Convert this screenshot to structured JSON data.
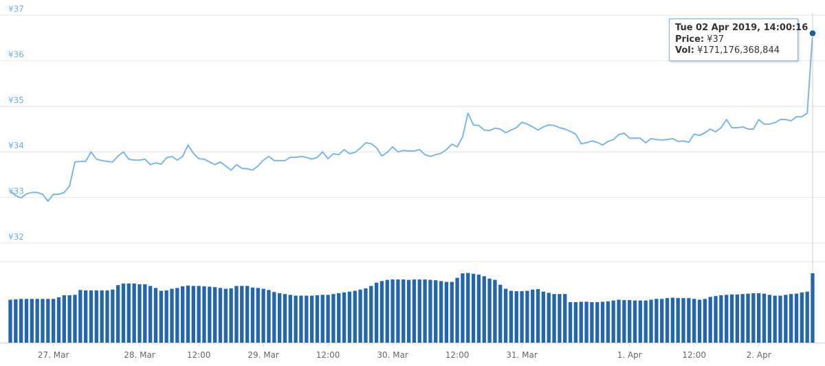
{
  "chart_data": {
    "type": "line",
    "categories": [
      null,
      null,
      null,
      null,
      null,
      null,
      null,
      null,
      "27. Mar",
      null,
      null,
      null,
      null,
      null,
      null,
      null,
      null,
      null,
      null,
      null,
      null,
      null,
      null,
      null,
      "28. Mar",
      null,
      null,
      null,
      null,
      null,
      null,
      null,
      null,
      null,
      null,
      "12:00",
      null,
      null,
      null,
      null,
      null,
      null,
      null,
      null,
      null,
      null,
      null,
      "29. Mar",
      null,
      null,
      null,
      null,
      null,
      null,
      null,
      null,
      null,
      null,
      null,
      "12:00",
      null,
      null,
      null,
      null,
      null,
      null,
      null,
      null,
      null,
      null,
      null,
      "30. Mar",
      null,
      null,
      null,
      null,
      null,
      null,
      null,
      null,
      null,
      null,
      null,
      "12:00",
      null,
      null,
      null,
      null,
      null,
      null,
      null,
      null,
      null,
      null,
      null,
      "31. Mar",
      null,
      null,
      null,
      null,
      null,
      null,
      null,
      null,
      null,
      null,
      null,
      null,
      null,
      null,
      null,
      null,
      null,
      null,
      null,
      "1. Apr",
      null,
      null,
      null,
      null,
      null,
      null,
      null,
      null,
      null,
      null,
      null,
      "12:00",
      null,
      null,
      null,
      null,
      null,
      null,
      null,
      null,
      null,
      null,
      null,
      "2. Apr",
      null,
      null,
      null,
      null,
      null,
      null,
      null,
      null,
      null,
      null
    ],
    "series": [
      {
        "type": "line",
        "color": "#7cb5ec",
        "values": [
          33.14,
          33.04,
          32.99,
          33.08,
          33.11,
          33.11,
          33.07,
          32.92,
          33.07,
          33.07,
          33.11,
          33.25,
          33.78,
          33.79,
          33.79,
          34.0,
          33.84,
          33.81,
          33.79,
          33.78,
          33.91,
          34.0,
          33.84,
          33.82,
          33.82,
          33.84,
          33.72,
          33.76,
          33.73,
          33.87,
          33.9,
          33.82,
          33.9,
          34.15,
          33.97,
          33.85,
          33.84,
          33.78,
          33.72,
          33.78,
          33.69,
          33.6,
          33.72,
          33.64,
          33.63,
          33.6,
          33.69,
          33.82,
          33.9,
          33.81,
          33.81,
          33.81,
          33.88,
          33.88,
          33.9,
          33.88,
          33.84,
          33.88,
          34.0,
          33.85,
          33.96,
          33.94,
          34.05,
          33.96,
          33.99,
          34.08,
          34.2,
          34.18,
          34.09,
          33.91,
          33.99,
          34.11,
          34.0,
          34.03,
          34.02,
          34.02,
          34.05,
          33.94,
          33.9,
          33.94,
          33.97,
          34.05,
          34.17,
          34.11,
          34.33,
          34.85,
          34.59,
          34.58,
          34.48,
          34.47,
          34.52,
          34.5,
          34.42,
          34.48,
          34.53,
          34.65,
          34.61,
          34.55,
          34.48,
          34.55,
          34.59,
          34.58,
          34.53,
          34.5,
          34.45,
          34.39,
          34.18,
          34.2,
          34.24,
          34.21,
          34.15,
          34.23,
          34.27,
          34.38,
          34.41,
          34.3,
          34.3,
          34.3,
          34.2,
          34.29,
          34.27,
          34.26,
          34.27,
          34.29,
          34.23,
          34.24,
          34.21,
          34.39,
          34.36,
          34.42,
          34.5,
          34.44,
          34.53,
          34.71,
          34.53,
          34.53,
          34.55,
          34.5,
          34.5,
          34.71,
          34.61,
          34.61,
          34.64,
          34.71,
          34.71,
          34.68,
          34.77,
          34.77,
          34.85,
          36.6
        ]
      },
      {
        "type": "bar",
        "axis": "y2",
        "color": "#2366ad",
        "values": [
          106,
          107,
          108,
          108,
          108,
          108,
          108,
          108,
          108,
          112,
          117,
          117,
          118,
          130,
          129,
          129,
          129,
          129,
          129,
          131,
          142,
          146,
          146,
          146,
          144,
          144,
          140,
          135,
          128,
          129,
          133,
          135,
          139,
          141,
          140,
          140,
          139,
          138,
          137,
          135,
          133,
          134,
          140,
          140,
          140,
          136,
          135,
          133,
          130,
          125,
          122,
          120,
          118,
          116,
          116,
          116,
          116,
          117,
          118,
          118,
          120,
          122,
          124,
          126,
          128,
          131,
          134,
          140,
          148,
          152,
          155,
          156,
          156,
          156,
          155,
          156,
          156,
          156,
          155,
          154,
          152,
          150,
          150,
          160,
          171,
          172,
          170,
          168,
          164,
          158,
          155,
          143,
          133,
          128,
          127,
          127,
          128,
          131,
          132,
          126,
          123,
          120,
          120,
          120,
          100,
          100,
          101,
          101,
          100,
          100,
          101,
          102,
          104,
          106,
          105,
          105,
          104,
          104,
          104,
          106,
          108,
          108,
          110,
          111,
          110,
          110,
          110,
          108,
          106,
          108,
          113,
          115,
          117,
          118,
          119,
          119,
          120,
          121,
          122,
          122,
          121,
          118,
          116,
          116,
          118,
          120,
          121,
          124,
          126,
          171.176368844
        ]
      }
    ],
    "ylim": [
      32,
      37
    ],
    "yticks": [
      {
        "value": 32,
        "label": "¥32"
      },
      {
        "value": 33,
        "label": "¥33"
      },
      {
        "value": 34,
        "label": "¥34"
      },
      {
        "value": 35,
        "label": "¥35"
      },
      {
        "value": 36,
        "label": "¥36"
      },
      {
        "value": 37,
        "label": "¥37"
      }
    ],
    "y2lim": [
      0,
      200
    ],
    "grid": true,
    "tooltip": {
      "date": "Tue 02 Apr 2019, 14:00:16",
      "price_label": "Price:",
      "price": "¥37",
      "vol_label": "Vol:",
      "vol": "¥171,176,368,844"
    }
  }
}
